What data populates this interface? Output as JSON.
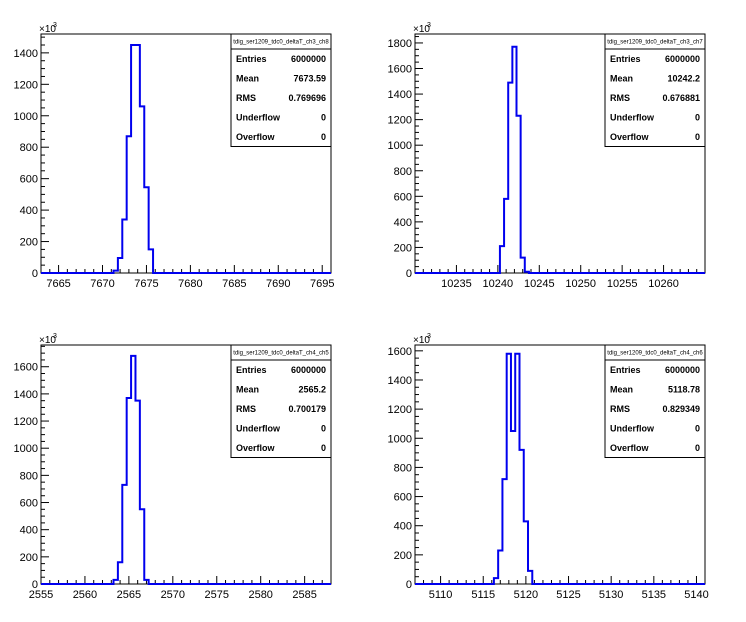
{
  "chart_data": [
    {
      "type": "bar",
      "title": "tdig_ser1209_tdc0_deltaT_ch3_ch8",
      "exponent_label": "×10",
      "exponent_power": "3",
      "xlim": [
        7663,
        7696
      ],
      "ylim": [
        0,
        1520
      ],
      "xticks": [
        "7665",
        "7670",
        "7675",
        "7680",
        "7685",
        "7690",
        "7695"
      ],
      "yticks": [
        "0",
        "200",
        "400",
        "600",
        "800",
        "1000",
        "1200",
        "1400"
      ],
      "bin_width": 0.5,
      "x": [
        7671.5,
        7672,
        7672.5,
        7673,
        7673.5,
        7674,
        7674.5,
        7675,
        7675.5
      ],
      "values": [
        15,
        95,
        340,
        870,
        1450,
        1450,
        1060,
        545,
        150
      ],
      "color": "#0000ee",
      "stats": [
        {
          "label": "Entries",
          "value": "6000000"
        },
        {
          "label": "Mean",
          "value": "7673.59"
        },
        {
          "label": "RMS",
          "value": "0.769696"
        },
        {
          "label": "Underflow",
          "value": "0"
        },
        {
          "label": "Overflow",
          "value": "0"
        }
      ]
    },
    {
      "type": "bar",
      "title": "tdig_ser1209_tdc0_deltaT_ch3_ch7",
      "exponent_label": "×10",
      "exponent_power": "3",
      "xlim": [
        10230,
        10265
      ],
      "ylim": [
        0,
        1870
      ],
      "xticks": [
        "10235",
        "10240",
        "10245",
        "10250",
        "10255",
        "10260"
      ],
      "yticks": [
        "0",
        "200",
        "400",
        "600",
        "800",
        "1000",
        "1200",
        "1400",
        "1600",
        "1800"
      ],
      "bin_width": 0.5,
      "x": [
        10240.5,
        10241,
        10241.5,
        10242,
        10242.5,
        10243,
        10243.5
      ],
      "values": [
        210,
        580,
        1490,
        1770,
        1230,
        120,
        10
      ],
      "color": "#0000ee",
      "stats": [
        {
          "label": "Entries",
          "value": "6000000"
        },
        {
          "label": "Mean",
          "value": "10242.2"
        },
        {
          "label": "RMS",
          "value": "0.676881"
        },
        {
          "label": "Underflow",
          "value": "0"
        },
        {
          "label": "Overflow",
          "value": "0"
        }
      ]
    },
    {
      "type": "bar",
      "title": "tdig_ser1209_tdc0_deltaT_ch4_ch5",
      "exponent_label": "×10",
      "exponent_power": "3",
      "xlim": [
        2555,
        2588
      ],
      "ylim": [
        0,
        1760
      ],
      "xticks": [
        "2555",
        "2560",
        "2565",
        "2570",
        "2575",
        "2580",
        "2585"
      ],
      "yticks": [
        "0",
        "200",
        "400",
        "600",
        "800",
        "1000",
        "1200",
        "1400",
        "1600"
      ],
      "bin_width": 0.5,
      "x": [
        2563.5,
        2564,
        2564.5,
        2565,
        2565.5,
        2566,
        2566.5,
        2567
      ],
      "values": [
        30,
        160,
        730,
        1370,
        1680,
        1350,
        550,
        30
      ],
      "color": "#0000ee",
      "stats": [
        {
          "label": "Entries",
          "value": "6000000"
        },
        {
          "label": "Mean",
          "value": "2565.2"
        },
        {
          "label": "RMS",
          "value": "0.700179"
        },
        {
          "label": "Underflow",
          "value": "0"
        },
        {
          "label": "Overflow",
          "value": "0"
        }
      ]
    },
    {
      "type": "bar",
      "title": "tdig_ser1209_tdc0_deltaT_ch4_ch6",
      "exponent_label": "×10",
      "exponent_power": "3",
      "xlim": [
        5107,
        5141
      ],
      "ylim": [
        0,
        1640
      ],
      "xticks": [
        "5110",
        "5115",
        "5120",
        "5125",
        "5130",
        "5135",
        "5140"
      ],
      "yticks": [
        "0",
        "200",
        "400",
        "600",
        "800",
        "1000",
        "1200",
        "1400",
        "1600"
      ],
      "bin_width": 0.5,
      "x": [
        5116.5,
        5117,
        5117.5,
        5118,
        5118.5,
        5119,
        5119.5,
        5120,
        5120.5
      ],
      "values": [
        40,
        230,
        720,
        1580,
        1050,
        1580,
        920,
        430,
        90
      ],
      "color": "#0000ee",
      "stats": [
        {
          "label": "Entries",
          "value": "6000000"
        },
        {
          "label": "Mean",
          "value": "5118.78"
        },
        {
          "label": "RMS",
          "value": "0.829349"
        },
        {
          "label": "Underflow",
          "value": "0"
        },
        {
          "label": "Overflow",
          "value": "0"
        }
      ]
    }
  ]
}
